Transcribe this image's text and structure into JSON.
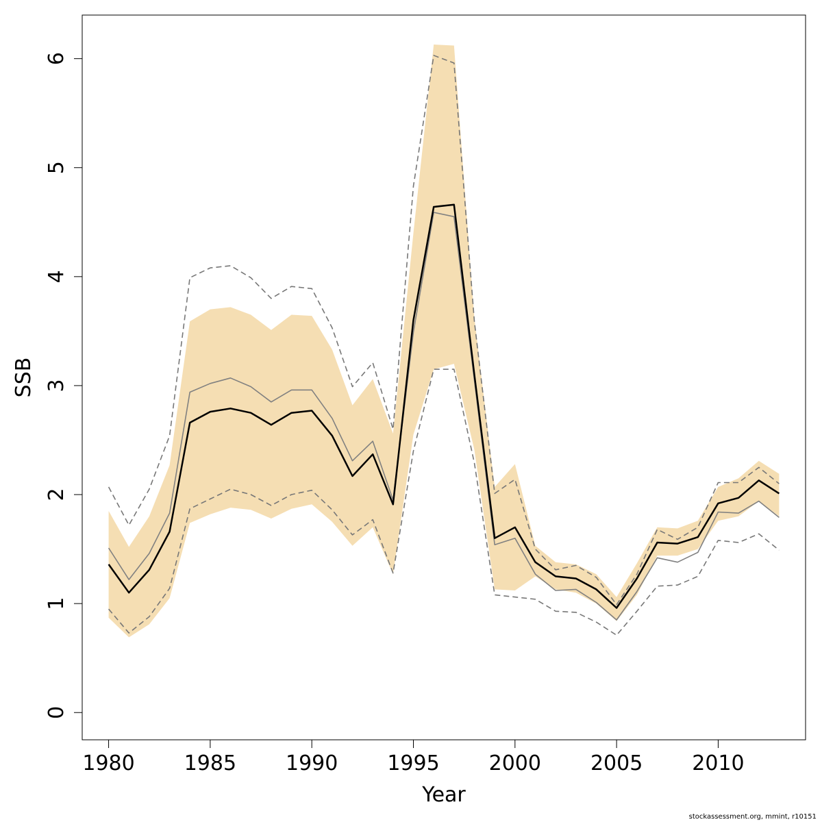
{
  "chart_data": {
    "type": "line",
    "xlabel": "Year",
    "ylabel": "SSB",
    "xlim": [
      1978.7,
      2014.3
    ],
    "ylim": [
      -0.25,
      6.4
    ],
    "x_ticks": [
      1980,
      1985,
      1990,
      1995,
      2000,
      2005,
      2010
    ],
    "y_ticks": [
      0,
      1,
      2,
      3,
      4,
      5,
      6
    ],
    "grid": false,
    "legend": "none",
    "x": [
      1980,
      1981,
      1982,
      1983,
      1984,
      1985,
      1986,
      1987,
      1988,
      1989,
      1990,
      1991,
      1992,
      1993,
      1994,
      1995,
      1996,
      1997,
      1998,
      1999,
      2000,
      2001,
      2002,
      2003,
      2004,
      2005,
      2006,
      2007,
      2008,
      2009,
      2010,
      2011,
      2012,
      2013
    ],
    "band": {
      "color": "#f5deb3",
      "upper": [
        1.85,
        1.52,
        1.8,
        2.27,
        3.59,
        3.7,
        3.72,
        3.65,
        3.51,
        3.65,
        3.64,
        3.33,
        2.82,
        3.06,
        2.56,
        4.4,
        6.13,
        6.12,
        3.62,
        2.07,
        2.28,
        1.53,
        1.38,
        1.36,
        1.27,
        1.06,
        1.37,
        1.7,
        1.69,
        1.76,
        2.07,
        2.15,
        2.31,
        2.19
      ],
      "lower": [
        0.87,
        0.69,
        0.81,
        1.05,
        1.74,
        1.82,
        1.88,
        1.86,
        1.78,
        1.87,
        1.91,
        1.75,
        1.53,
        1.7,
        1.27,
        2.55,
        3.15,
        3.2,
        2.41,
        1.13,
        1.12,
        1.25,
        1.13,
        1.1,
        1.0,
        0.84,
        1.08,
        1.44,
        1.44,
        1.5,
        1.76,
        1.8,
        1.94,
        1.8
      ]
    },
    "series": [
      {
        "values": [
          1.36,
          1.1,
          1.31,
          1.66,
          2.66,
          2.76,
          2.79,
          2.75,
          2.64,
          2.75,
          2.77,
          2.54,
          2.17,
          2.37,
          1.91,
          3.6,
          4.64,
          4.66,
          3.1,
          1.6,
          1.7,
          1.38,
          1.25,
          1.23,
          1.13,
          0.96,
          1.23,
          1.56,
          1.55,
          1.61,
          1.92,
          1.97,
          2.13,
          2.01
        ],
        "color": "#000000",
        "style": "solid",
        "width": 2.5
      },
      {
        "values": [
          1.51,
          1.22,
          1.46,
          1.83,
          2.94,
          3.02,
          3.07,
          2.99,
          2.85,
          2.96,
          2.96,
          2.7,
          2.31,
          2.49,
          1.95,
          3.49,
          4.59,
          4.55,
          3.05,
          1.54,
          1.6,
          1.27,
          1.12,
          1.13,
          1.01,
          0.85,
          1.11,
          1.42,
          1.38,
          1.47,
          1.84,
          1.83,
          1.94,
          1.79
        ],
        "color": "#808080",
        "style": "solid",
        "width": 1.6
      },
      {
        "values": [
          2.07,
          1.72,
          2.05,
          2.54,
          3.99,
          4.08,
          4.1,
          3.99,
          3.8,
          3.91,
          3.89,
          3.53,
          2.99,
          3.21,
          2.6,
          4.83,
          6.03,
          5.96,
          3.59,
          2.01,
          2.14,
          1.5,
          1.31,
          1.35,
          1.24,
          0.99,
          1.27,
          1.68,
          1.59,
          1.7,
          2.11,
          2.11,
          2.25,
          2.1
        ],
        "color": "#777777",
        "style": "dashed",
        "width": 1.6
      },
      {
        "values": [
          0.95,
          0.73,
          0.88,
          1.14,
          1.87,
          1.96,
          2.05,
          2.0,
          1.9,
          2.0,
          2.04,
          1.86,
          1.63,
          1.77,
          1.28,
          2.4,
          3.15,
          3.15,
          2.29,
          1.08,
          1.06,
          1.04,
          0.93,
          0.92,
          0.83,
          0.71,
          0.93,
          1.16,
          1.17,
          1.25,
          1.58,
          1.56,
          1.64,
          1.49
        ],
        "color": "#777777",
        "style": "dashed",
        "width": 1.6
      }
    ]
  },
  "footer": {
    "credit": "stockassessment.org, mmint, r10151"
  }
}
